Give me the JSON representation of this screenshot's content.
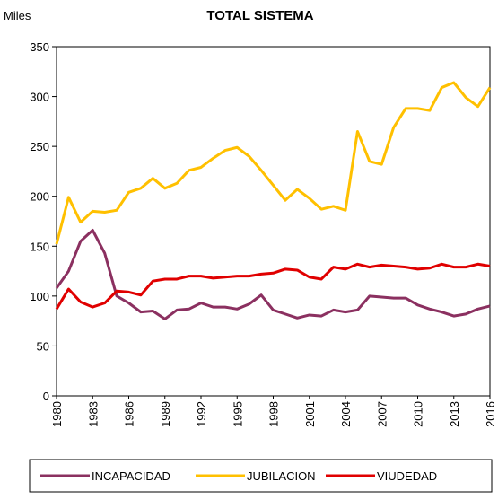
{
  "chart_data": {
    "type": "line",
    "title": "TOTAL SISTEMA",
    "y_unit": "Miles",
    "x": [
      1980,
      1981,
      1982,
      1983,
      1984,
      1985,
      1986,
      1987,
      1988,
      1989,
      1990,
      1991,
      1992,
      1993,
      1994,
      1995,
      1996,
      1997,
      1998,
      1999,
      2000,
      2001,
      2002,
      2003,
      2004,
      2005,
      2006,
      2007,
      2008,
      2009,
      2010,
      2011,
      2012,
      2013,
      2014,
      2015,
      2016
    ],
    "series": [
      {
        "name": "INCAPACIDAD",
        "color": "#8b3060",
        "values": [
          108,
          125,
          155,
          166,
          143,
          100,
          93,
          84,
          85,
          77,
          86,
          87,
          93,
          89,
          89,
          87,
          92,
          101,
          86,
          82,
          78,
          81,
          80,
          86,
          84,
          86,
          100,
          99,
          98,
          98,
          91,
          87,
          84,
          80,
          82,
          87,
          90
        ]
      },
      {
        "name": "JUBILACION",
        "color": "#ffc000",
        "values": [
          152,
          199,
          174,
          185,
          184,
          186,
          204,
          208,
          218,
          208,
          213,
          226,
          229,
          238,
          246,
          249,
          240,
          226,
          211,
          196,
          207,
          198,
          187,
          190,
          186,
          265,
          235,
          232,
          269,
          288,
          288,
          286,
          309,
          314,
          299,
          290,
          309
        ]
      },
      {
        "name": "VIUDEDAD",
        "color": "#e00000",
        "values": [
          87,
          107,
          94,
          89,
          93,
          105,
          104,
          101,
          115,
          117,
          117,
          120,
          120,
          118,
          119,
          120,
          120,
          122,
          123,
          127,
          126,
          119,
          117,
          129,
          127,
          132,
          129,
          131,
          130,
          129,
          127,
          128,
          132,
          129,
          129,
          132,
          130
        ]
      }
    ],
    "xlim": [
      1980,
      2016
    ],
    "xticks": [
      1980,
      1983,
      1986,
      1989,
      1992,
      1995,
      1998,
      2001,
      2004,
      2007,
      2010,
      2013,
      2016
    ],
    "ylim": [
      0,
      350
    ],
    "yticks": [
      0,
      50,
      100,
      150,
      200,
      250,
      300,
      350
    ],
    "grid": false,
    "legend": "bottom"
  }
}
